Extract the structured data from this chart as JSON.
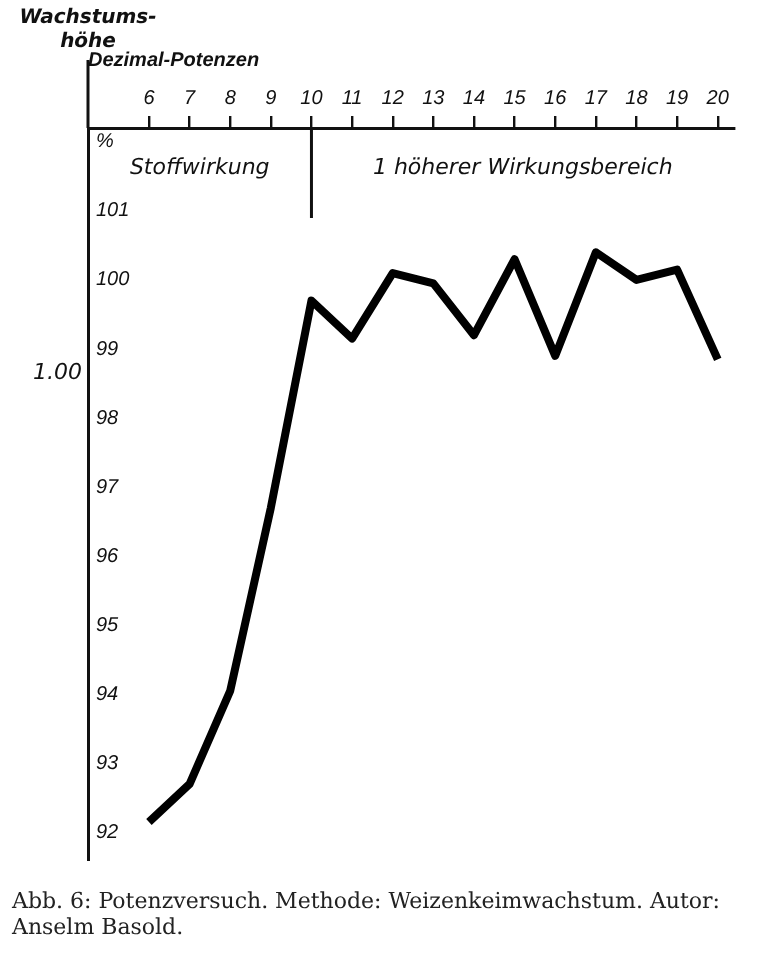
{
  "chart_data": {
    "type": "line",
    "xlabel": "Dezimal-Potenzen",
    "ylabel": "Wachstums-höhe",
    "x": [
      6,
      7,
      8,
      9,
      10,
      11,
      12,
      13,
      14,
      15,
      16,
      17,
      18,
      19,
      20
    ],
    "series": [
      {
        "color": "#000000",
        "values": [
          92.15,
          92.7,
          94.05,
          96.7,
          99.7,
          99.15,
          100.1,
          99.95,
          99.2,
          100.3,
          98.9,
          100.4,
          100.0,
          100.15,
          98.85
        ]
      }
    ],
    "xlim": [
      4.5,
      20.4
    ],
    "xticks": [
      6,
      7,
      8,
      9,
      10,
      11,
      12,
      13,
      14,
      15,
      16,
      17,
      18,
      19,
      20
    ],
    "ylim": [
      91.6,
      102.2
    ],
    "yticks": [
      92,
      93,
      94,
      95,
      96,
      97,
      98,
      99,
      100,
      101,
      {
        "value": 102,
        "label": "%"
      }
    ],
    "ref_lines": [
      {
        "axis": "x",
        "value": 10
      }
    ],
    "annotations": [
      "Stoffwirkung",
      "1 höherer Wirkungsbereich",
      "1.00",
      "Abb. 6: Potenzversuch. Methode: Weizenkeimwachstum. Autor: Anselm Basold."
    ],
    "grid": false,
    "legend": false,
    "marker": "none",
    "line_style": "solid"
  }
}
